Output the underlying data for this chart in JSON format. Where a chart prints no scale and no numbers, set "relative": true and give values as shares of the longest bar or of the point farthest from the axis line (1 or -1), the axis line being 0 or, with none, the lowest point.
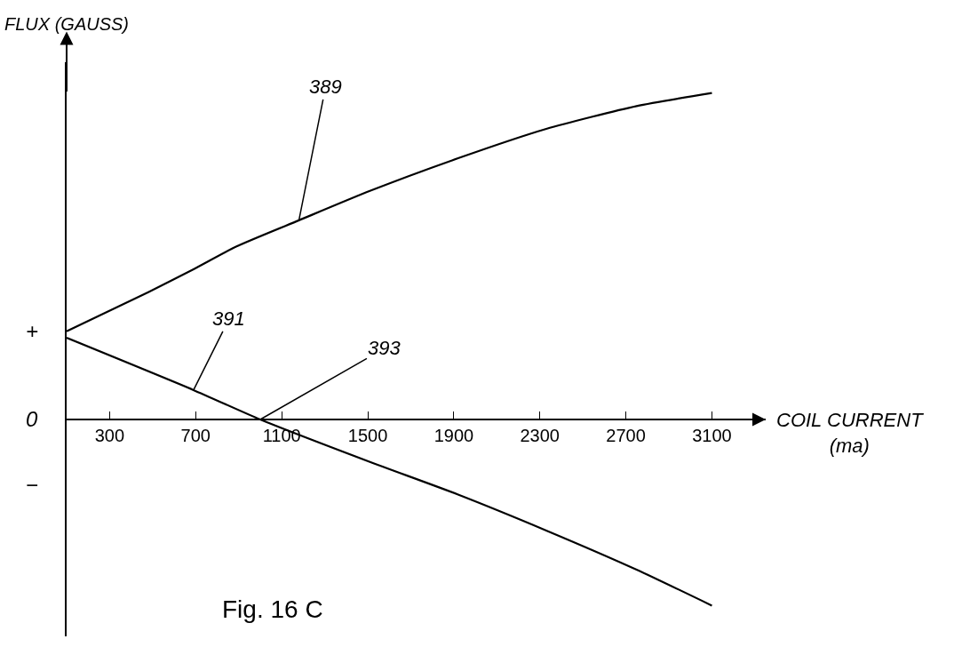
{
  "chart_data": {
    "type": "line",
    "relative": true,
    "title": "Fig. 16 C",
    "xlabel": "COIL CURRENT (ma)",
    "ylabel": "FLUX (GAUSS)",
    "xlim": [
      100,
      3350
    ],
    "xticks": [
      300,
      700,
      1100,
      1500,
      1900,
      2300,
      2700,
      3100
    ],
    "series": [
      {
        "color": "#000000",
        "x": [
          100,
          480,
          690,
          890,
          1180,
          1510,
          1920,
          2330,
          2750,
          3100
        ],
        "values": [
          0.27,
          0.39,
          0.46,
          0.53,
          0.61,
          0.7,
          0.8,
          0.89,
          0.96,
          1.0
        ]
      },
      {
        "color": "#000000",
        "x": [
          100,
          690,
          1000,
          1510,
          1920,
          2330,
          2750,
          3100
        ],
        "values": [
          0.25,
          0.09,
          0,
          -0.13,
          -0.23,
          -0.34,
          -0.46,
          -0.57
        ]
      }
    ],
    "annotations": [
      {
        "text": "389",
        "x": 1180,
        "y": 0.61
      },
      {
        "text": "391",
        "x": 690,
        "y": 0.09
      },
      {
        "text": "393",
        "x": 1000,
        "y": 0
      },
      "+",
      "0",
      "−"
    ],
    "marker": "none",
    "line_style": "solid"
  }
}
